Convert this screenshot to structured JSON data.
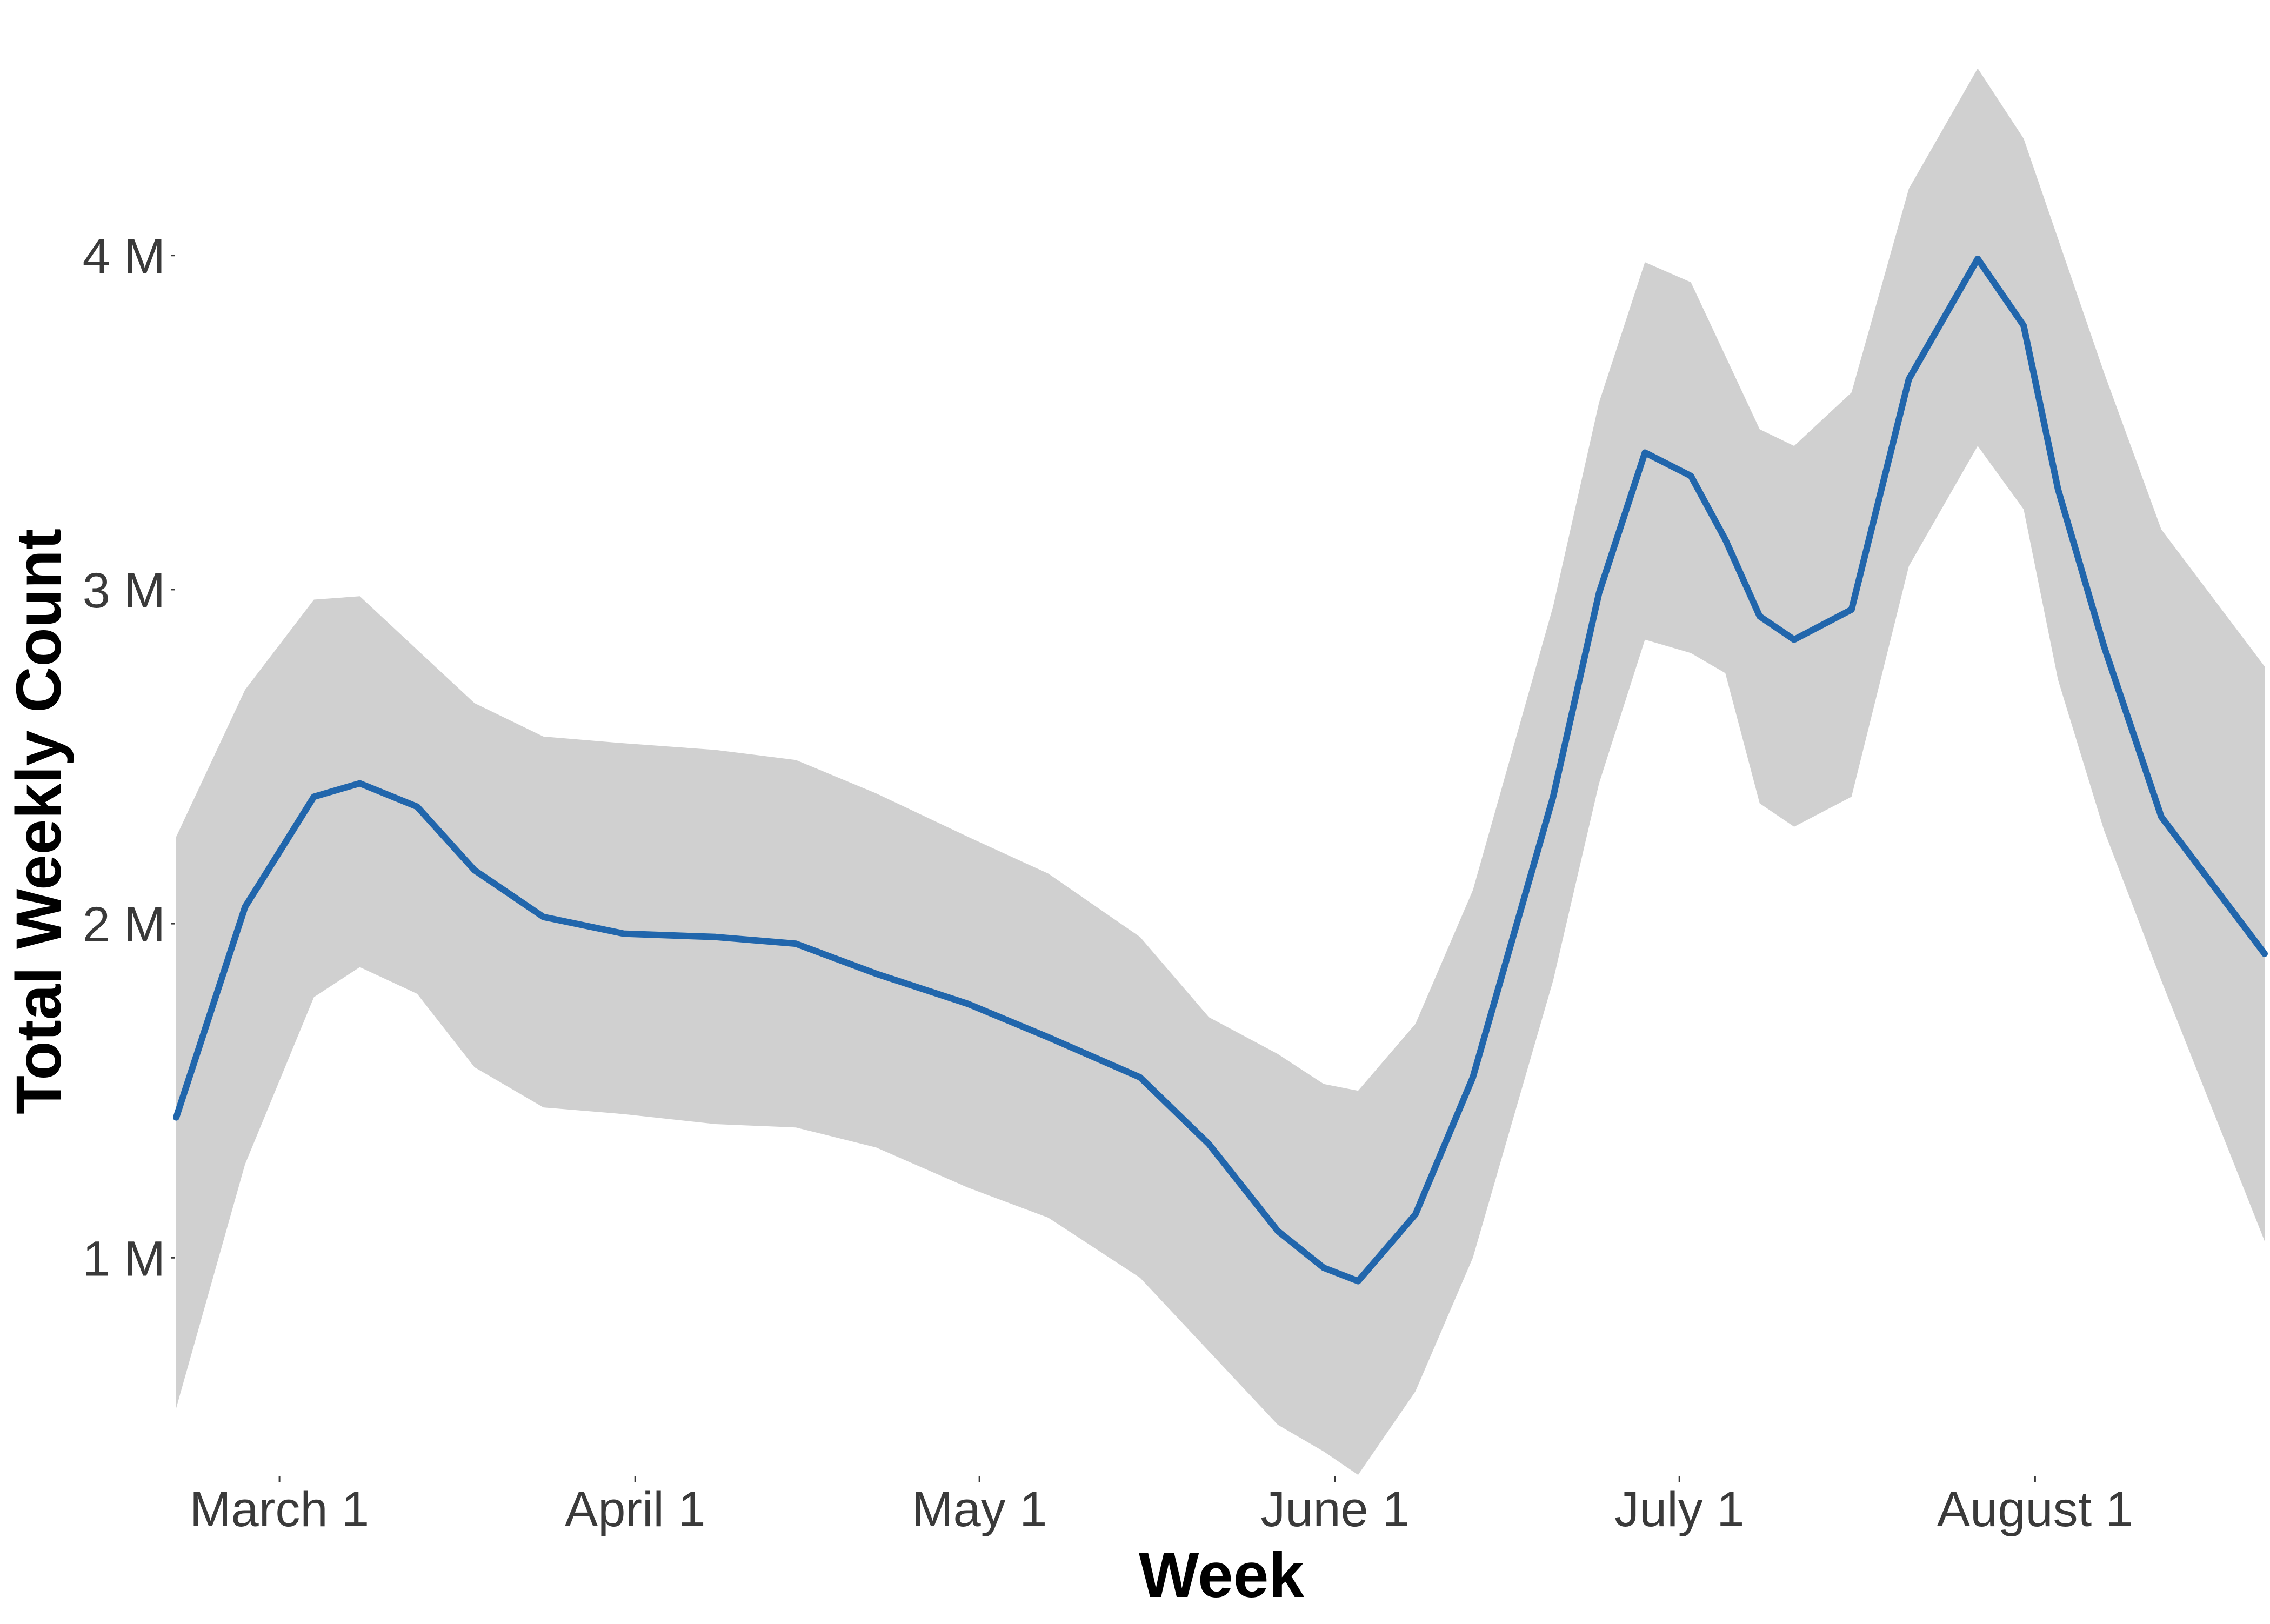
{
  "chart_data": {
    "type": "area",
    "title": "",
    "xlabel": "Week",
    "ylabel": "Total Weekly Count",
    "x_ticks": [
      {
        "date": "2020-03-01",
        "label": "March 1"
      },
      {
        "date": "2020-04-01",
        "label": "April 1"
      },
      {
        "date": "2020-05-01",
        "label": "May 1"
      },
      {
        "date": "2020-06-01",
        "label": "June 1"
      },
      {
        "date": "2020-07-01",
        "label": "July 1"
      },
      {
        "date": "2020-08-01",
        "label": "August 1"
      }
    ],
    "y_ticks": [
      {
        "value": 1000000,
        "label": "1 M"
      },
      {
        "value": 2000000,
        "label": "2 M"
      },
      {
        "value": 3000000,
        "label": "3 M"
      },
      {
        "value": 4000000,
        "label": "4 M"
      }
    ],
    "xlim": [
      "2020-02-21",
      "2020-08-21"
    ],
    "ylim": [
      300000,
      4700000
    ],
    "grid": false,
    "legend": "none",
    "series": [
      {
        "type": "line",
        "color": "#2166ac",
        "x": [
          "2020-02-21",
          "2020-02-27",
          "2020-03-04",
          "2020-03-08",
          "2020-03-13",
          "2020-03-18",
          "2020-03-24",
          "2020-03-31",
          "2020-04-08",
          "2020-04-15",
          "2020-04-22",
          "2020-04-30",
          "2020-05-07",
          "2020-05-15",
          "2020-05-21",
          "2020-05-27",
          "2020-05-31",
          "2020-06-03",
          "2020-06-08",
          "2020-06-13",
          "2020-06-20",
          "2020-06-24",
          "2020-06-28",
          "2020-07-02",
          "2020-07-05",
          "2020-07-08",
          "2020-07-11",
          "2020-07-16",
          "2020-07-21",
          "2020-07-27",
          "2020-07-31",
          "2020-08-03",
          "2020-08-07",
          "2020-08-12",
          "2020-08-21"
        ],
        "y": [
          1420000,
          2050000,
          2380000,
          2420000,
          2350000,
          2160000,
          2020000,
          1970000,
          1960000,
          1940000,
          1850000,
          1760000,
          1660000,
          1540000,
          1340000,
          1080000,
          970000,
          930000,
          1130000,
          1540000,
          2380000,
          2990000,
          3410000,
          3340000,
          3150000,
          2920000,
          2850000,
          2940000,
          3630000,
          3990000,
          3790000,
          3300000,
          2830000,
          2320000,
          1910000
        ]
      },
      {
        "type": "band",
        "color": "#d0d0d0",
        "x": [
          "2020-02-21",
          "2020-02-27",
          "2020-03-04",
          "2020-03-08",
          "2020-03-13",
          "2020-03-18",
          "2020-03-24",
          "2020-03-31",
          "2020-04-08",
          "2020-04-15",
          "2020-04-22",
          "2020-04-30",
          "2020-05-07",
          "2020-05-15",
          "2020-05-21",
          "2020-05-27",
          "2020-05-31",
          "2020-06-03",
          "2020-06-08",
          "2020-06-13",
          "2020-06-20",
          "2020-06-24",
          "2020-06-28",
          "2020-07-02",
          "2020-07-05",
          "2020-07-08",
          "2020-07-11",
          "2020-07-16",
          "2020-07-21",
          "2020-07-27",
          "2020-07-31",
          "2020-08-03",
          "2020-08-07",
          "2020-08-12",
          "2020-08-21"
        ],
        "upper": [
          2260000,
          2700000,
          2970000,
          2980000,
          2820000,
          2660000,
          2560000,
          2540000,
          2520000,
          2490000,
          2390000,
          2260000,
          2150000,
          1960000,
          1720000,
          1610000,
          1520000,
          1500000,
          1700000,
          2100000,
          2950000,
          3560000,
          3980000,
          3920000,
          3700000,
          3480000,
          3430000,
          3590000,
          4200000,
          4560000,
          4350000,
          4050000,
          3650000,
          3180000,
          2770000
        ],
        "lower": [
          550000,
          1280000,
          1780000,
          1870000,
          1790000,
          1570000,
          1450000,
          1430000,
          1400000,
          1390000,
          1330000,
          1210000,
          1120000,
          940000,
          720000,
          500000,
          420000,
          350000,
          600000,
          1000000,
          1830000,
          2420000,
          2850000,
          2810000,
          2750000,
          2360000,
          2290000,
          2380000,
          3070000,
          3430000,
          3240000,
          2730000,
          2280000,
          1830000,
          1050000
        ]
      }
    ]
  }
}
